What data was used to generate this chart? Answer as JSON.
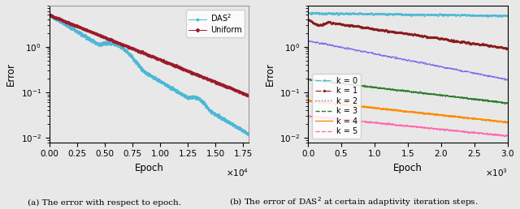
{
  "fig_width": 6.4,
  "fig_height": 2.58,
  "dpi": 100,
  "background_color": "#e8e8e8",
  "left_xlim": [
    0,
    18000
  ],
  "left_ylim": [
    0.008,
    8.0
  ],
  "left_xticks": [
    0,
    2500,
    5000,
    7500,
    10000,
    12500,
    15000,
    17500
  ],
  "left_xlabel": "Epoch",
  "left_ylabel": "Error",
  "left_caption": "(a) The error with respect to epoch.",
  "das2_color": "#4db8d4",
  "das2_label": "DAS$^2$",
  "uniform_color": "#9b1b2a",
  "uniform_label": "Uniform",
  "right_xlim": [
    0,
    3000
  ],
  "right_ylim": [
    0.008,
    8.0
  ],
  "right_xticks": [
    0,
    500,
    1000,
    1500,
    2000,
    2500,
    3000
  ],
  "right_xlabel": "Epoch",
  "right_ylabel": "Error",
  "right_caption": "(b) The error of DAS$^2$ at certain adaptivity iteration steps.",
  "k_labels": [
    "k = 0",
    "k = 1",
    "k = 2",
    "k = 3",
    "k = 4",
    "k = 5"
  ],
  "k_colors": [
    "#4db8d4",
    "#8b1a1a",
    "#7b68ee",
    "#2e7d2e",
    "#ff8c00",
    "#ff69b4"
  ],
  "k_start": [
    5.5,
    4.0,
    1.35,
    0.19,
    0.065,
    0.03
  ],
  "k_end": [
    4.8,
    0.92,
    0.19,
    0.058,
    0.022,
    0.011
  ]
}
